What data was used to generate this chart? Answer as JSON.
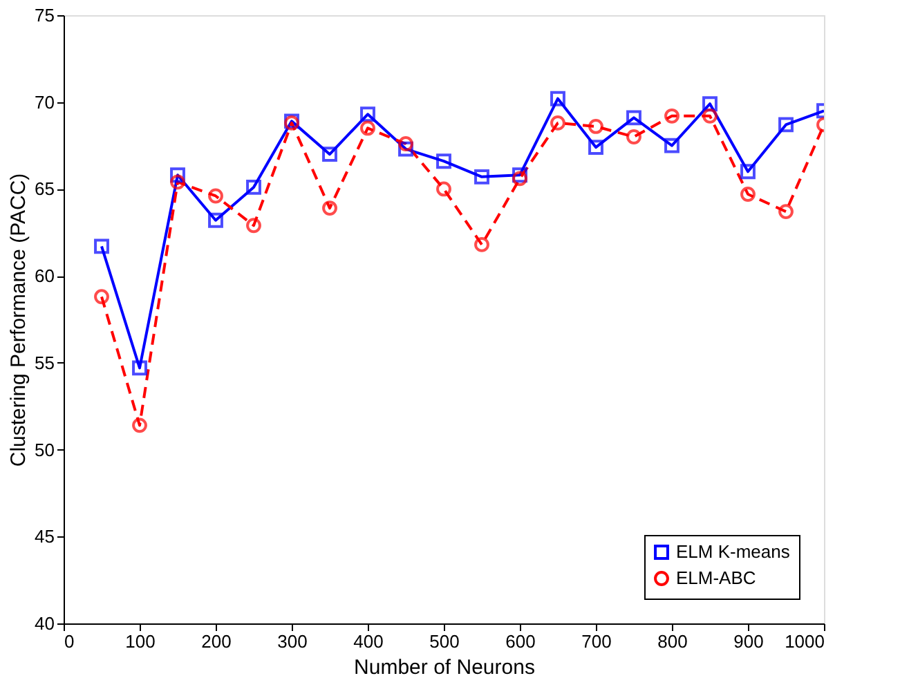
{
  "chart_data": {
    "type": "line",
    "xlabel": "Number of Neurons",
    "ylabel": "Clustering Performance (PACC)",
    "x": [
      50,
      100,
      150,
      200,
      250,
      300,
      350,
      400,
      450,
      500,
      550,
      600,
      650,
      700,
      750,
      800,
      850,
      900,
      950,
      1000
    ],
    "series": [
      {
        "name": "ELM K-means",
        "color": "#0000ff",
        "marker": "square",
        "line_style": "solid",
        "values": [
          61.7,
          54.7,
          65.8,
          63.2,
          65.1,
          68.9,
          67.0,
          69.3,
          67.3,
          66.6,
          65.7,
          65.8,
          70.2,
          67.4,
          69.1,
          67.5,
          69.9,
          66.0,
          68.7,
          69.5
        ]
      },
      {
        "name": "ELM-ABC",
        "color": "#ff0000",
        "marker": "circle",
        "line_style": "dashed",
        "values": [
          58.8,
          51.4,
          65.4,
          64.6,
          62.9,
          68.8,
          63.9,
          68.5,
          67.6,
          65.0,
          61.8,
          65.6,
          68.8,
          68.6,
          68.0,
          69.2,
          69.2,
          64.7,
          63.7,
          68.7
        ]
      }
    ],
    "xlim": [
      0,
      1000
    ],
    "xticks": [
      0,
      100,
      200,
      300,
      400,
      500,
      600,
      700,
      800,
      900,
      1000
    ],
    "ylim": [
      40,
      75
    ],
    "yticks": [
      40,
      45,
      50,
      55,
      60,
      65,
      70,
      75
    ],
    "grid": false,
    "legend": "bottom right"
  }
}
